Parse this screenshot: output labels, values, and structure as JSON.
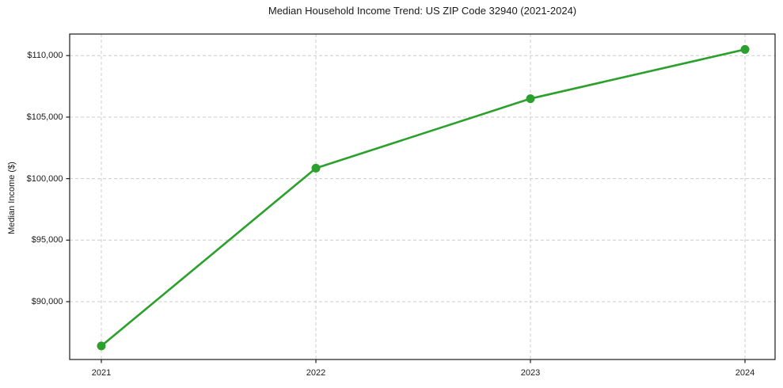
{
  "chart_data": {
    "type": "line",
    "title": "Median Household Income Trend: US ZIP Code 32940 (2021-2024)",
    "xlabel": "",
    "ylabel": "Median Income ($)",
    "x": [
      2021,
      2022,
      2023,
      2024
    ],
    "values": [
      86400,
      100850,
      106500,
      110500
    ],
    "xticks": [
      {
        "value": 2021,
        "label": "2021"
      },
      {
        "value": 2022,
        "label": "2022"
      },
      {
        "value": 2023,
        "label": "2023"
      },
      {
        "value": 2024,
        "label": "2024"
      }
    ],
    "yticks": [
      {
        "value": 90000,
        "label": "$90,000"
      },
      {
        "value": 95000,
        "label": "$95,000"
      },
      {
        "value": 100000,
        "label": "$100,000"
      },
      {
        "value": 105000,
        "label": "$105,000"
      },
      {
        "value": 110000,
        "label": "$110,000"
      }
    ],
    "ylim": [
      85300,
      111750
    ],
    "line_color": "#2ca02c",
    "marker": "circle",
    "grid": {
      "visible": true,
      "style": "dashed",
      "color": "#cccccc"
    },
    "axis_color": "#1a1a1a",
    "legend_position": "none",
    "background_color": "#ffffff"
  }
}
